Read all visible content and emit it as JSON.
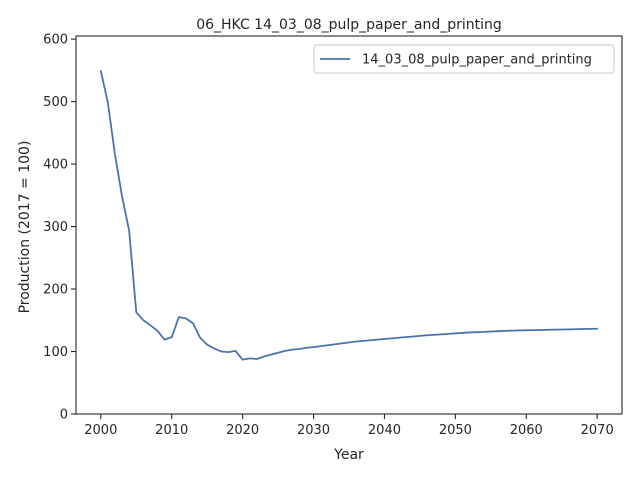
{
  "chart_data": {
    "type": "line",
    "title": "06_HKC 14_03_08_pulp_paper_and_printing",
    "xlabel": "Year",
    "ylabel": "Production (2017 = 100)",
    "xlim": [
      1996.5,
      2073.5
    ],
    "ylim": [
      0,
      605
    ],
    "xticks": [
      2000,
      2010,
      2020,
      2030,
      2040,
      2050,
      2060,
      2070
    ],
    "yticks": [
      0,
      100,
      200,
      300,
      400,
      500,
      600
    ],
    "grid": false,
    "legend_position": "top-right",
    "series": [
      {
        "name": "14_03_08_pulp_paper_and_printing",
        "color": "#4c72b0",
        "x": [
          2000,
          2001,
          2002,
          2003,
          2004,
          2005,
          2006,
          2007,
          2008,
          2009,
          2010,
          2011,
          2012,
          2013,
          2014,
          2015,
          2016,
          2017,
          2018,
          2019,
          2020,
          2021,
          2022,
          2023,
          2024,
          2025,
          2026,
          2027,
          2028,
          2029,
          2030,
          2032,
          2034,
          2036,
          2038,
          2040,
          2042,
          2044,
          2046,
          2048,
          2050,
          2052,
          2054,
          2056,
          2058,
          2060,
          2062,
          2064,
          2066,
          2068,
          2070
        ],
        "y": [
          549,
          498,
          415,
          348,
          293,
          163,
          150,
          142,
          133,
          119,
          123,
          155,
          153,
          145,
          122,
          111,
          105,
          100,
          99,
          101,
          87,
          89,
          88,
          92,
          95,
          98,
          101,
          103,
          104,
          106,
          107,
          110,
          113,
          116,
          118,
          120,
          122,
          124,
          126,
          127.5,
          129,
          130.5,
          131.5,
          132.5,
          133.5,
          134,
          134.5,
          135,
          135.5,
          136,
          136.5
        ]
      }
    ]
  }
}
